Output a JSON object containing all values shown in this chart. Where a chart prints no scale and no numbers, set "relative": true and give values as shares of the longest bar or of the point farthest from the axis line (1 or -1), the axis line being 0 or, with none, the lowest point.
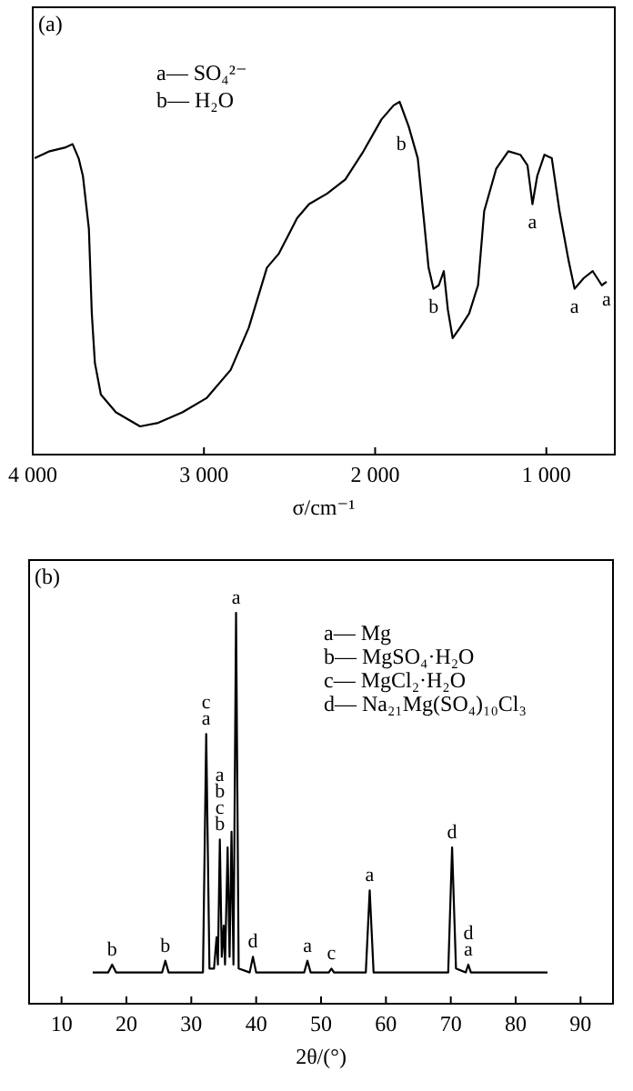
{
  "chart_data": [
    {
      "type": "line",
      "title": "(a)",
      "xlabel": "σ/cm⁻¹",
      "relative": true,
      "xlim": [
        4000,
        600
      ],
      "xticks": [
        {
          "value": 4000,
          "label": "4 000"
        },
        {
          "value": 3000,
          "label": "3 000"
        },
        {
          "value": 2000,
          "label": "2 000"
        },
        {
          "value": 1000,
          "label": "1 000"
        }
      ],
      "tick_labels": "x",
      "series": [
        {
          "color": "#000000",
          "x": [
            3989,
            3901,
            3813,
            3767,
            3732,
            3707,
            3672,
            3655,
            3637,
            3602,
            3514,
            3373,
            3267,
            3126,
            2985,
            2844,
            2738,
            2632,
            2562,
            2456,
            2386,
            2280,
            2174,
            2068,
            1963,
            1892,
            1857,
            1804,
            1751,
            1716,
            1688,
            1659,
            1628,
            1599,
            1575,
            1547,
            1504,
            1451,
            1399,
            1363,
            1293,
            1222,
            1152,
            1110,
            1081,
            1053,
            1011,
            968,
            923,
            870,
            835,
            782,
            729,
            676,
            648
          ],
          "values": [
            0.84,
            0.86,
            0.87,
            0.88,
            0.84,
            0.79,
            0.64,
            0.4,
            0.26,
            0.17,
            0.12,
            0.08,
            0.09,
            0.12,
            0.16,
            0.24,
            0.36,
            0.53,
            0.57,
            0.67,
            0.71,
            0.74,
            0.78,
            0.86,
            0.95,
            0.99,
            1.0,
            0.93,
            0.84,
            0.67,
            0.53,
            0.47,
            0.48,
            0.52,
            0.41,
            0.33,
            0.36,
            0.4,
            0.48,
            0.69,
            0.81,
            0.86,
            0.85,
            0.82,
            0.71,
            0.79,
            0.85,
            0.84,
            0.69,
            0.55,
            0.47,
            0.5,
            0.52,
            0.48,
            0.49
          ]
        }
      ],
      "annotations": [
        "a— SO₄²⁻",
        "b— H₂O",
        {
          "text": "b",
          "x": 1804,
          "y": 0.93
        },
        {
          "text": "b",
          "x": 1659,
          "y": 0.47
        },
        {
          "text": "a",
          "x": 1081,
          "y": 0.71
        },
        {
          "text": "a",
          "x": 835,
          "y": 0.47
        },
        {
          "text": "a",
          "x": 648,
          "y": 0.49
        }
      ]
    },
    {
      "type": "line",
      "title": "(b)",
      "xlabel": "2θ/(°)",
      "relative": true,
      "xlim": [
        5,
        95
      ],
      "xticks": [
        10,
        20,
        30,
        40,
        50,
        60,
        70,
        80,
        90
      ],
      "tick_labels": "x",
      "series": [
        {
          "color": "#000000",
          "x": [
            14.8,
            17.2,
            17.8,
            18.4,
            25.5,
            26.0,
            26.5,
            31.8,
            32.3,
            32.8,
            33.5,
            33.9,
            34.1,
            34.4,
            34.7,
            35.0,
            35.2,
            35.6,
            35.9,
            36.2,
            36.5,
            36.9,
            37.3,
            39.0,
            39.5,
            40.0,
            47.4,
            47.9,
            48.4,
            51.2,
            51.6,
            52.0,
            56.9,
            57.5,
            58.1,
            69.6,
            70.2,
            70.8,
            72.3,
            72.7,
            73.1,
            84.9
          ],
          "values": [
            0.08,
            0.08,
            0.1,
            0.08,
            0.08,
            0.11,
            0.08,
            0.08,
            0.69,
            0.09,
            0.09,
            0.17,
            0.1,
            0.42,
            0.12,
            0.2,
            0.1,
            0.4,
            0.12,
            0.44,
            0.1,
            1.0,
            0.09,
            0.08,
            0.12,
            0.08,
            0.08,
            0.11,
            0.08,
            0.08,
            0.09,
            0.08,
            0.08,
            0.29,
            0.08,
            0.08,
            0.4,
            0.09,
            0.08,
            0.1,
            0.08,
            0.08
          ]
        }
      ],
      "annotations": [
        "a— Mg",
        "b— MgSO₄·H₂O",
        "c— MgCl₂·H₂O",
        "d— Na₂₁Mg(SO₄)₁₀Cl₃",
        {
          "text": "b",
          "x": 17.8,
          "y": 0.1
        },
        {
          "text": "b",
          "x": 26.0,
          "y": 0.11
        },
        {
          "text": "a",
          "x": 32.3,
          "y": 0.69
        },
        {
          "text": "c",
          "x": 32.3,
          "y": 0.69
        },
        {
          "text": "b",
          "x": 34.4,
          "y": 0.42
        },
        {
          "text": "c",
          "x": 34.4,
          "y": 0.42
        },
        {
          "text": "b",
          "x": 34.4,
          "y": 0.42
        },
        {
          "text": "a",
          "x": 34.4,
          "y": 0.42
        },
        {
          "text": "a",
          "x": 36.9,
          "y": 1.0
        },
        {
          "text": "d",
          "x": 39.5,
          "y": 0.12
        },
        {
          "text": "a",
          "x": 47.9,
          "y": 0.11
        },
        {
          "text": "c",
          "x": 51.6,
          "y": 0.09
        },
        {
          "text": "a",
          "x": 57.5,
          "y": 0.29
        },
        {
          "text": "d",
          "x": 70.2,
          "y": 0.4
        },
        {
          "text": "a",
          "x": 72.7,
          "y": 0.1
        },
        {
          "text": "d",
          "x": 72.7,
          "y": 0.1
        }
      ]
    }
  ]
}
